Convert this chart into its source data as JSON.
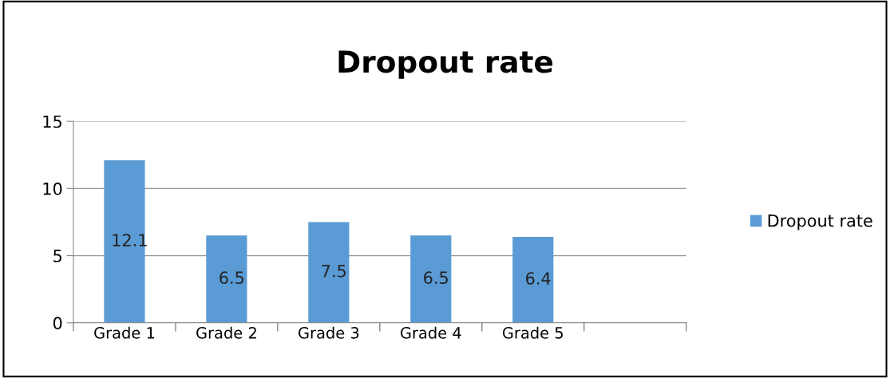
{
  "chart_data": {
    "type": "bar",
    "title": "Dropout rate",
    "categories": [
      "Grade 1",
      "Grade 2",
      "Grade 3",
      "Grade 4",
      "Grade 5",
      null
    ],
    "series": [
      {
        "name": "Dropout rate",
        "color": "#5b9bd5",
        "values": [
          12.1,
          6.5,
          7.5,
          6.5,
          6.4,
          null
        ]
      }
    ],
    "ylim": [
      0,
      15
    ],
    "yticks": [
      0,
      5,
      10,
      15
    ],
    "grid": "y",
    "legend": "right",
    "data_labels": true
  }
}
